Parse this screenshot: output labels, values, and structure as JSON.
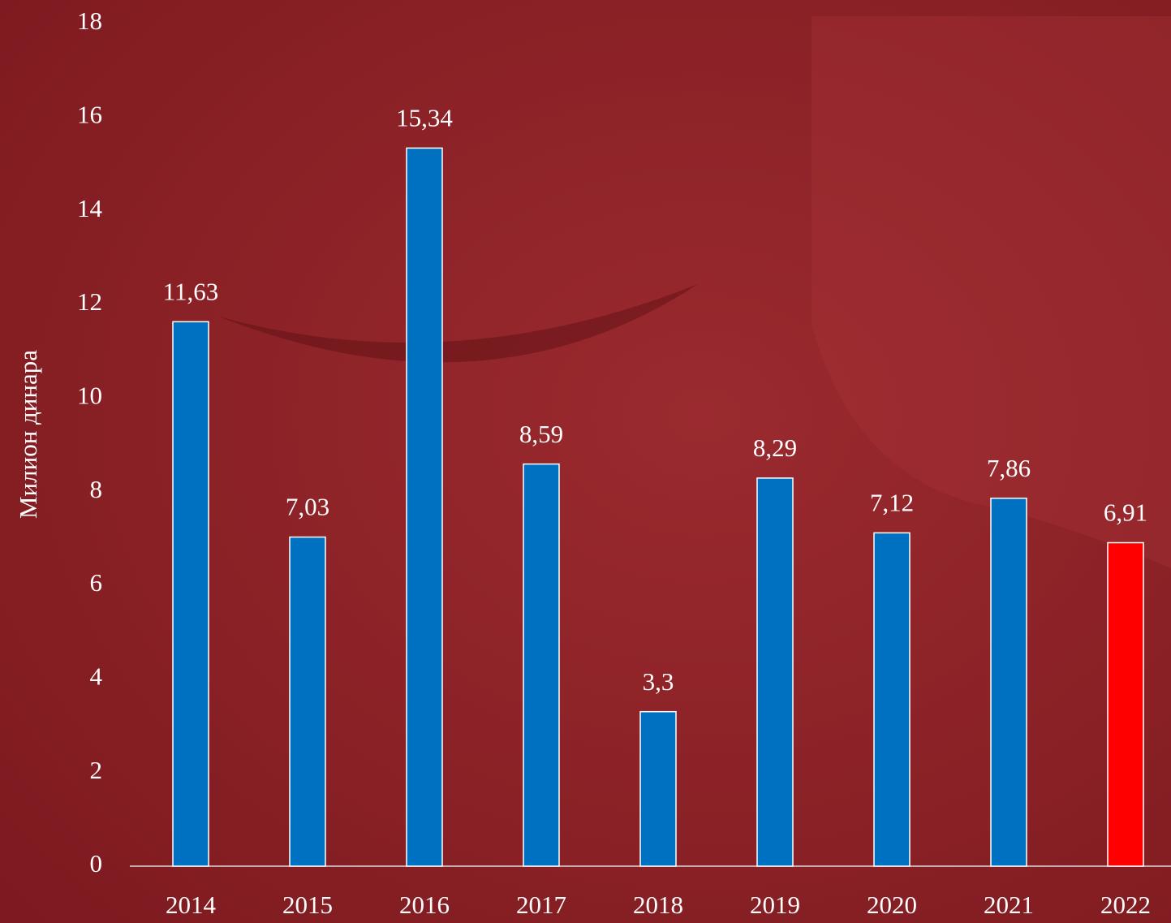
{
  "chart_data": {
    "type": "bar",
    "y_label": "Милион динара",
    "categories": [
      "2014",
      "2015",
      "2016",
      "2017",
      "2018",
      "2019",
      "2020",
      "2021",
      "2022"
    ],
    "values": [
      11.63,
      7.03,
      15.34,
      8.59,
      3.3,
      8.29,
      7.12,
      7.86,
      6.91
    ],
    "value_labels": [
      "11,63",
      "7,03",
      "15,34",
      "8,59",
      "3,3",
      "8,29",
      "7,12",
      "7,86",
      "6,91"
    ],
    "colors": [
      "#0070c0",
      "#0070c0",
      "#0070c0",
      "#0070c0",
      "#0070c0",
      "#0070c0",
      "#0070c0",
      "#0070c0",
      "#ff0000"
    ],
    "ylim": [
      0,
      18
    ],
    "yticks": [
      0,
      2,
      4,
      6,
      8,
      10,
      12,
      14,
      16,
      18
    ],
    "grid": false
  }
}
